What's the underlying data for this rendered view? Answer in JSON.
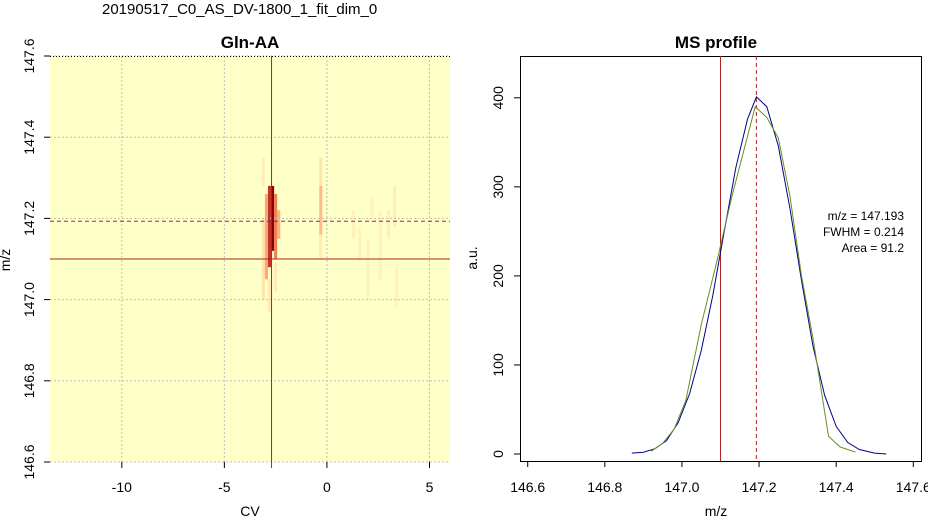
{
  "page": {
    "title": "20190517_C0_AS_DV-1800_1_fit_dim_0"
  },
  "chart_data": [
    {
      "type": "heatmap",
      "title": "Gln-AA",
      "xlabel": "CV",
      "ylabel": "m/z",
      "xlim": [
        -13.5,
        6
      ],
      "ylim": [
        146.6,
        147.6
      ],
      "x_ticks": [
        -10,
        -5,
        0,
        5
      ],
      "y_ticks": [
        146.6,
        146.8,
        147.0,
        147.2,
        147.4,
        147.6
      ],
      "grid": true,
      "background_color": "#ffffc8",
      "vline_x": -2.7,
      "hline_y": 147.1,
      "hline_dashed_y": 147.193,
      "cells": [
        {
          "x": -2.95,
          "y0": 147.05,
          "y1": 147.26,
          "intensity": 0.55
        },
        {
          "x": -2.8,
          "y0": 147.08,
          "y1": 147.28,
          "intensity": 0.85
        },
        {
          "x": -2.65,
          "y0": 147.12,
          "y1": 147.28,
          "intensity": 1.0
        },
        {
          "x": -2.5,
          "y0": 147.1,
          "y1": 147.26,
          "intensity": 0.7
        },
        {
          "x": -2.35,
          "y0": 147.15,
          "y1": 147.22,
          "intensity": 0.5
        },
        {
          "x": -3.1,
          "y0": 147.0,
          "y1": 147.2,
          "intensity": 0.2
        },
        {
          "x": -3.1,
          "y0": 147.28,
          "y1": 147.35,
          "intensity": 0.12
        },
        {
          "x": -2.8,
          "y0": 146.97,
          "y1": 147.05,
          "intensity": 0.15
        },
        {
          "x": -2.5,
          "y0": 147.02,
          "y1": 147.09,
          "intensity": 0.15
        },
        {
          "x": -0.3,
          "y0": 147.16,
          "y1": 147.28,
          "intensity": 0.45
        },
        {
          "x": -0.3,
          "y0": 147.28,
          "y1": 147.35,
          "intensity": 0.2
        },
        {
          "x": -0.3,
          "y0": 147.1,
          "y1": 147.16,
          "intensity": 0.15
        },
        {
          "x": 1.3,
          "y0": 147.15,
          "y1": 147.22,
          "intensity": 0.1
        },
        {
          "x": 1.6,
          "y0": 147.1,
          "y1": 147.18,
          "intensity": 0.08
        },
        {
          "x": 2.0,
          "y0": 147.0,
          "y1": 147.15,
          "intensity": 0.07
        },
        {
          "x": 2.6,
          "y0": 147.05,
          "y1": 147.22,
          "intensity": 0.08
        },
        {
          "x": 3.0,
          "y0": 147.15,
          "y1": 147.22,
          "intensity": 0.1
        },
        {
          "x": 3.3,
          "y0": 147.18,
          "y1": 147.28,
          "intensity": 0.12
        },
        {
          "x": 3.4,
          "y0": 146.98,
          "y1": 147.08,
          "intensity": 0.08
        },
        {
          "x": 2.2,
          "y0": 147.2,
          "y1": 147.25,
          "intensity": 0.06
        }
      ]
    },
    {
      "type": "line",
      "title": "MS profile",
      "xlabel": "m/z",
      "ylabel": "a.u.",
      "xlim": [
        146.58,
        147.62
      ],
      "ylim": [
        0,
        420
      ],
      "x_ticks": [
        146.6,
        146.8,
        147.0,
        147.2,
        147.4,
        147.6
      ],
      "y_ticks": [
        0,
        100,
        200,
        300,
        400
      ],
      "vline_solid_x": 147.1,
      "vline_dashed_x": 147.193,
      "series": [
        {
          "color": "#00008b",
          "x": [
            146.87,
            146.9,
            146.93,
            146.96,
            146.99,
            147.02,
            147.05,
            147.08,
            147.11,
            147.14,
            147.17,
            147.193,
            147.22,
            147.25,
            147.28,
            147.31,
            147.34,
            147.37,
            147.4,
            147.43,
            147.46,
            147.5,
            147.53
          ],
          "y": [
            1,
            2,
            6,
            15,
            35,
            68,
            116,
            178,
            251,
            322,
            376,
            401,
            390,
            346,
            276,
            195,
            121,
            66,
            31,
            13,
            5,
            1,
            0
          ]
        },
        {
          "color": "#6b8e23",
          "x": [
            146.92,
            146.95,
            146.98,
            147.01,
            147.05,
            147.09,
            147.13,
            147.16,
            147.19,
            147.22,
            147.25,
            147.28,
            147.31,
            147.34,
            147.38,
            147.41,
            147.45
          ],
          "y": [
            3,
            12,
            28,
            60,
            145,
            215,
            290,
            340,
            390,
            378,
            355,
            290,
            200,
            130,
            20,
            8,
            2
          ]
        }
      ],
      "annotations": [
        "m/z = 147.193",
        "FWHM = 0.214",
        "Area = 91.2"
      ]
    }
  ]
}
